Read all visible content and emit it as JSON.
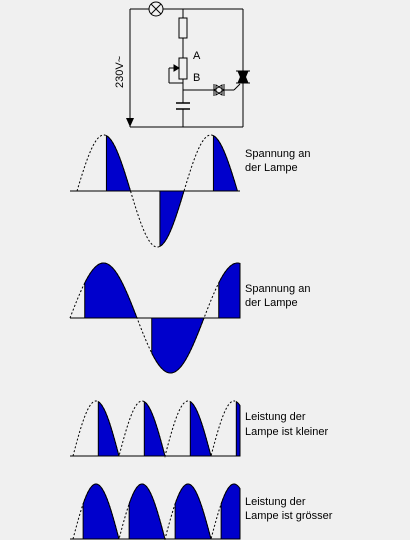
{
  "circuit": {
    "voltage_label": "230V~",
    "node_a": "A",
    "node_b": "B"
  },
  "panels": [
    {
      "id": "p1",
      "label_lines": [
        "Spannung an",
        "der Lampe"
      ]
    },
    {
      "id": "p2",
      "label_lines": [
        "Spannung an",
        "der Lampe"
      ]
    },
    {
      "id": "p3",
      "label_lines": [
        "Leistung der",
        "Lampe ist kleiner"
      ]
    },
    {
      "id": "p4",
      "label_lines": [
        "Leistung der",
        "Lampe ist grösser"
      ]
    }
  ],
  "colors": {
    "fill": "#0000cc",
    "line": "#000000",
    "background": "#f0f0f0"
  }
}
